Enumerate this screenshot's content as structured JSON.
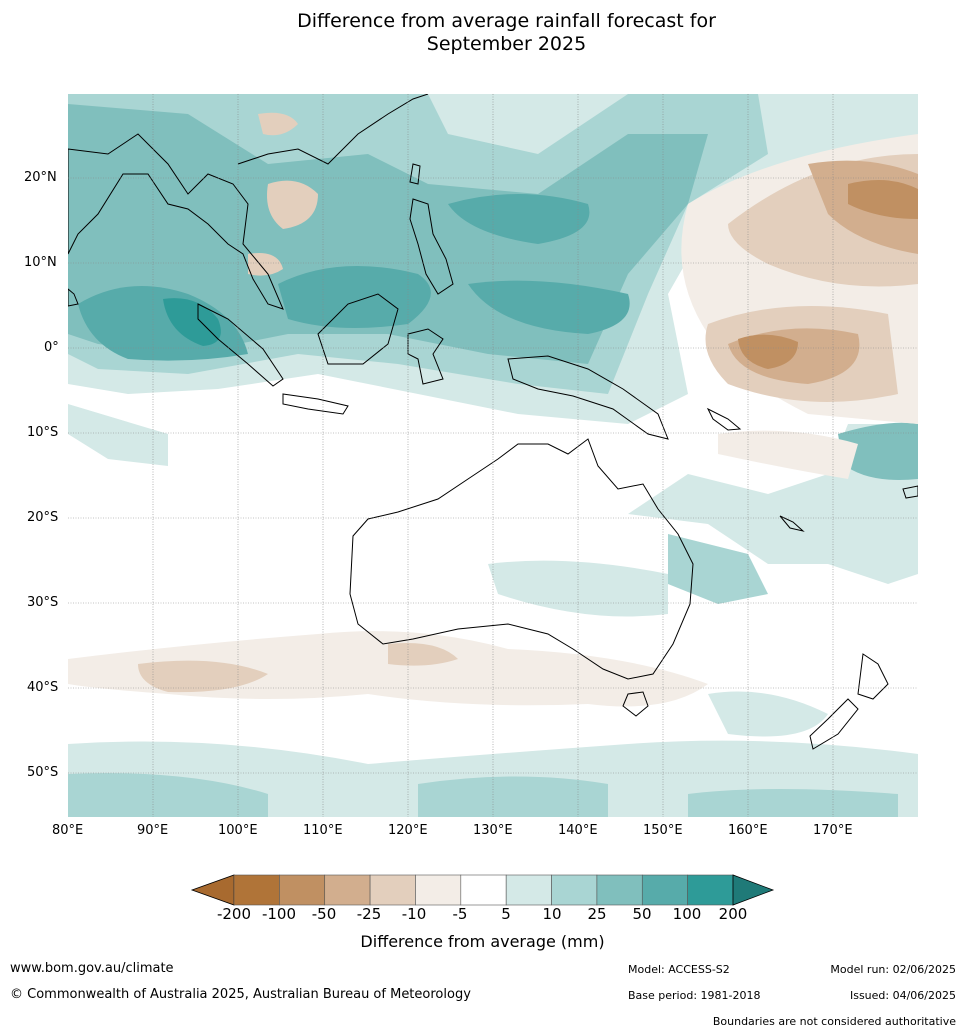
{
  "title_line1": "Difference from average rainfall forecast for",
  "title_line2": "September 2025",
  "lon_labels": [
    "80°E",
    "90°E",
    "100°E",
    "110°E",
    "120°E",
    "130°E",
    "140°E",
    "150°E",
    "160°E",
    "170°E"
  ],
  "lat_labels": [
    "20°N",
    "10°N",
    "0°",
    "10°S",
    "20°S",
    "30°S",
    "40°S",
    "50°S"
  ],
  "colorbar": {
    "ticks": [
      "-200",
      "-100",
      "-50",
      "-25",
      "-10",
      "-5",
      "5",
      "10",
      "25",
      "50",
      "100",
      "200"
    ],
    "colors": [
      "#a86a2f",
      "#b07438",
      "#c09062",
      "#d2ae8e",
      "#e3cfbd",
      "#f3ede7",
      "#ffffff",
      "#d4e9e7",
      "#a9d5d3",
      "#80bfbd",
      "#57abaa",
      "#2e9b98",
      "#1f7a78"
    ],
    "label": "Difference from average (mm)"
  },
  "footer": {
    "url": "www.bom.gov.au/climate",
    "copyright": "© Commonwealth of Australia 2025, Australian Bureau of Meteorology",
    "model": "Model: ACCESS-S2",
    "base_period": "Base period: 1981-2018",
    "model_run": "Model run: 02/06/2025",
    "issued": "Issued: 04/06/2025",
    "disclaimer": "Boundaries are not considered authoritative"
  }
}
